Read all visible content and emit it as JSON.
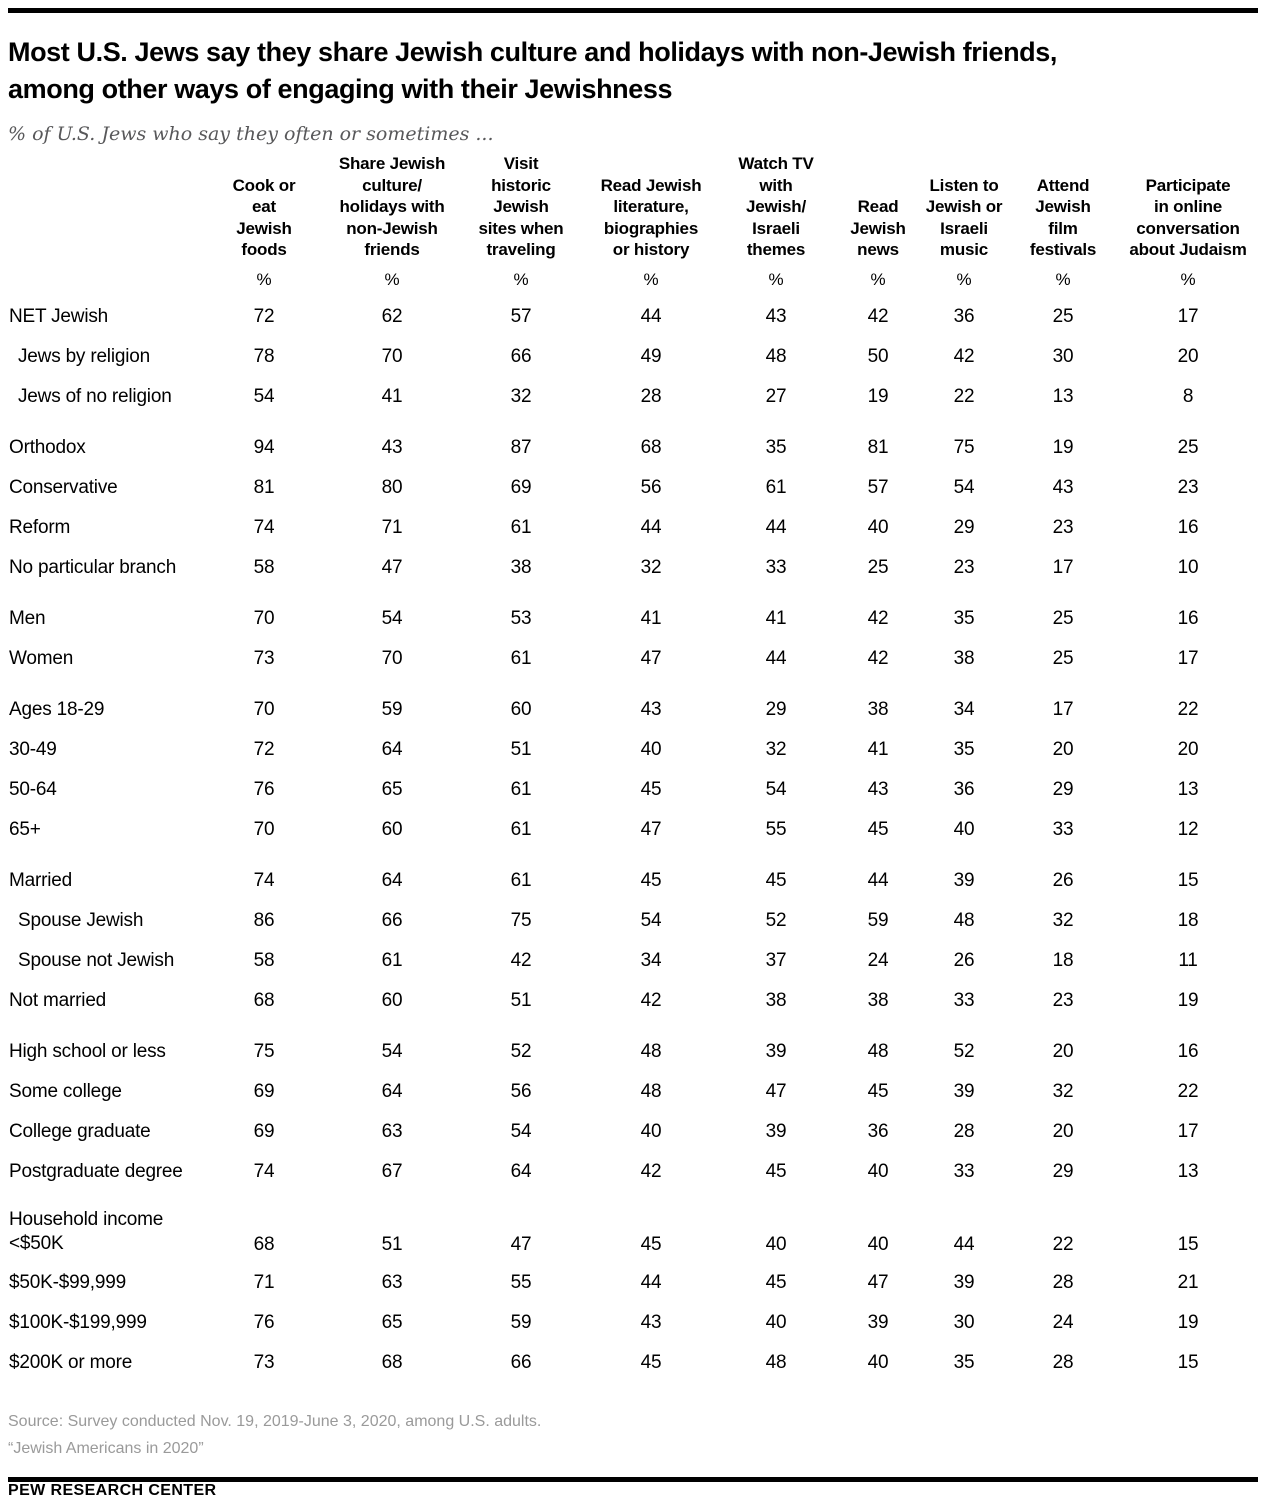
{
  "chart_data": {
    "type": "table",
    "title": "Most U.S. Jews say they share Jewish culture and holidays with non-Jewish friends,\namong other ways of engaging with their Jewishness",
    "subtitle": "% of U.S. Jews who say they often or sometimes ...",
    "unit": "%",
    "columns": [
      "Cook or\neat\nJewish\nfoods",
      "Share Jewish\nculture/\nholidays with\nnon-Jewish\nfriends",
      "Visit\nhistoric\nJewish\nsites when\ntraveling",
      "Read Jewish\nliterature,\nbiographies\nor history",
      "Watch TV\nwith\nJewish/\nIsraeli\nthemes",
      "Read\nJewish\nnews",
      "Listen to\nJewish or\nIsraeli\nmusic",
      "Attend\nJewish\nfilm\nfestivals",
      "Participate\nin online\nconversation\nabout Judaism"
    ],
    "groups": [
      {
        "rows": [
          {
            "label": "NET Jewish",
            "values": [
              72,
              62,
              57,
              44,
              43,
              42,
              36,
              25,
              17
            ]
          },
          {
            "label": "Jews by religion",
            "indent": true,
            "values": [
              78,
              70,
              66,
              49,
              48,
              50,
              42,
              30,
              20
            ]
          },
          {
            "label": "Jews of no religion",
            "indent": true,
            "values": [
              54,
              41,
              32,
              28,
              27,
              19,
              22,
              13,
              8
            ]
          }
        ]
      },
      {
        "rows": [
          {
            "label": "Orthodox",
            "values": [
              94,
              43,
              87,
              68,
              35,
              81,
              75,
              19,
              25
            ]
          },
          {
            "label": "Conservative",
            "values": [
              81,
              80,
              69,
              56,
              61,
              57,
              54,
              43,
              23
            ]
          },
          {
            "label": "Reform",
            "values": [
              74,
              71,
              61,
              44,
              44,
              40,
              29,
              23,
              16
            ]
          },
          {
            "label": "No particular branch",
            "values": [
              58,
              47,
              38,
              32,
              33,
              25,
              23,
              17,
              10
            ]
          }
        ]
      },
      {
        "rows": [
          {
            "label": "Men",
            "values": [
              70,
              54,
              53,
              41,
              41,
              42,
              35,
              25,
              16
            ]
          },
          {
            "label": "Women",
            "values": [
              73,
              70,
              61,
              47,
              44,
              42,
              38,
              25,
              17
            ]
          }
        ]
      },
      {
        "rows": [
          {
            "label": "Ages 18-29",
            "values": [
              70,
              59,
              60,
              43,
              29,
              38,
              34,
              17,
              22
            ]
          },
          {
            "label": "30-49",
            "values": [
              72,
              64,
              51,
              40,
              32,
              41,
              35,
              20,
              20
            ]
          },
          {
            "label": "50-64",
            "values": [
              76,
              65,
              61,
              45,
              54,
              43,
              36,
              29,
              13
            ]
          },
          {
            "label": "65+",
            "values": [
              70,
              60,
              61,
              47,
              55,
              45,
              40,
              33,
              12
            ]
          }
        ]
      },
      {
        "rows": [
          {
            "label": "Married",
            "values": [
              74,
              64,
              61,
              45,
              45,
              44,
              39,
              26,
              15
            ]
          },
          {
            "label": "Spouse Jewish",
            "indent": true,
            "values": [
              86,
              66,
              75,
              54,
              52,
              59,
              48,
              32,
              18
            ]
          },
          {
            "label": "Spouse not Jewish",
            "indent": true,
            "values": [
              58,
              61,
              42,
              34,
              37,
              24,
              26,
              18,
              11
            ]
          },
          {
            "label": "Not married",
            "values": [
              68,
              60,
              51,
              42,
              38,
              38,
              33,
              23,
              19
            ]
          }
        ]
      },
      {
        "rows": [
          {
            "label": "High school or less",
            "values": [
              75,
              54,
              52,
              48,
              39,
              48,
              52,
              20,
              16
            ]
          },
          {
            "label": "Some college",
            "values": [
              69,
              64,
              56,
              48,
              47,
              45,
              39,
              32,
              22
            ]
          },
          {
            "label": "College graduate",
            "values": [
              69,
              63,
              54,
              40,
              39,
              36,
              28,
              20,
              17
            ]
          },
          {
            "label": "Postgraduate degree",
            "values": [
              74,
              67,
              64,
              42,
              45,
              40,
              33,
              29,
              13
            ]
          }
        ]
      },
      {
        "rows": [
          {
            "label": "Household income\n<$50K",
            "tall": true,
            "values": [
              68,
              51,
              47,
              45,
              40,
              40,
              44,
              22,
              15
            ]
          },
          {
            "label": "$50K-$99,999",
            "values": [
              71,
              63,
              55,
              44,
              45,
              47,
              39,
              28,
              21
            ]
          },
          {
            "label": "$100K-$199,999",
            "values": [
              76,
              65,
              59,
              43,
              40,
              39,
              30,
              24,
              19
            ]
          },
          {
            "label": "$200K or more",
            "values": [
              73,
              68,
              66,
              45,
              48,
              40,
              35,
              28,
              15
            ]
          }
        ]
      }
    ],
    "source_lines": [
      "Source: Survey conducted Nov. 19, 2019-June 3, 2020, among U.S. adults.",
      "“Jewish Americans in 2020”"
    ],
    "brand": "PEW RESEARCH CENTER"
  }
}
